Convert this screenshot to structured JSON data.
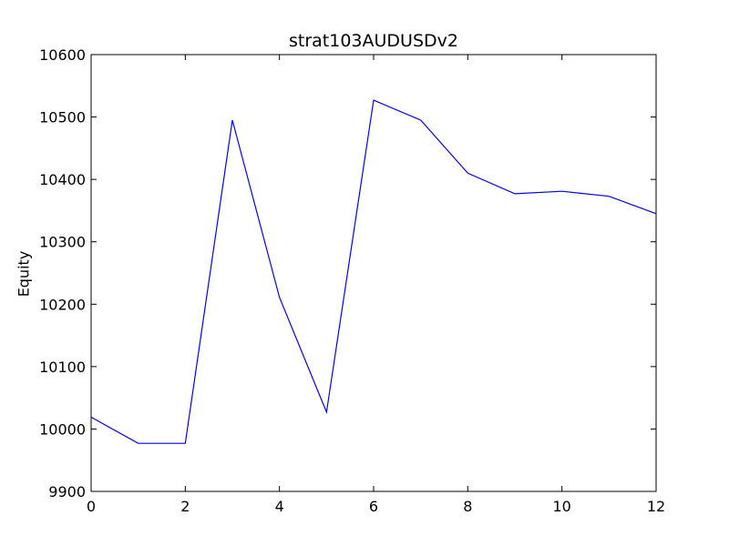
{
  "chart_data": {
    "type": "line",
    "title": "strat103AUDUSDv2",
    "xlabel": "",
    "ylabel": "Equity",
    "xlim": [
      0,
      12
    ],
    "ylim": [
      9900,
      10600
    ],
    "xticks": [
      0,
      2,
      4,
      6,
      8,
      10,
      12
    ],
    "yticks": [
      9900,
      10000,
      10100,
      10200,
      10300,
      10400,
      10500,
      10600
    ],
    "grid": false,
    "series": [
      {
        "color": "#0000ff",
        "x": [
          0,
          1,
          2,
          3,
          4,
          5,
          6,
          7,
          8,
          9,
          10,
          11,
          12
        ],
        "values": [
          10019,
          9977,
          9977,
          10495,
          10211,
          10027,
          10527,
          10495,
          10410,
          10377,
          10381,
          10373,
          10345
        ]
      }
    ]
  }
}
